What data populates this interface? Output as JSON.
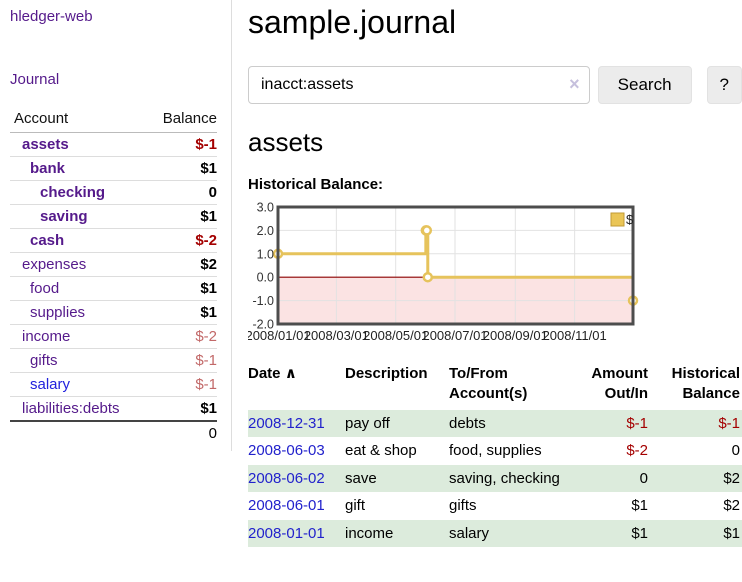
{
  "app": {
    "title": "hledger-web"
  },
  "sidebar": {
    "nav": {
      "journal": "Journal"
    },
    "accounts_table": {
      "headers": {
        "account": "Account",
        "balance": "Balance"
      },
      "rows": [
        {
          "name": "assets",
          "indent": 0,
          "bold": true,
          "balance": "$-1",
          "balance_style": "neg-strong"
        },
        {
          "name": "bank",
          "indent": 1,
          "bold": true,
          "balance": "$1",
          "balance_style": "pos"
        },
        {
          "name": "checking",
          "indent": 2,
          "bold": true,
          "balance": "0",
          "balance_style": "pos"
        },
        {
          "name": "saving",
          "indent": 2,
          "bold": true,
          "balance": "$1",
          "balance_style": "pos"
        },
        {
          "name": "cash",
          "indent": 1,
          "bold": true,
          "balance": "$-2",
          "balance_style": "neg-strong"
        },
        {
          "name": "expenses",
          "indent": 0,
          "bold": false,
          "balance": "$2",
          "balance_style": "pos"
        },
        {
          "name": "food",
          "indent": 1,
          "bold": false,
          "balance": "$1",
          "balance_style": "pos"
        },
        {
          "name": "supplies",
          "indent": 1,
          "bold": false,
          "balance": "$1",
          "balance_style": "pos"
        },
        {
          "name": "income",
          "indent": 0,
          "bold": false,
          "balance": "$-2",
          "balance_style": "neg-soft"
        },
        {
          "name": "gifts",
          "indent": 1,
          "bold": false,
          "balance": "$-1",
          "balance_style": "neg-soft"
        },
        {
          "name": "salary",
          "indent": 1,
          "bold": false,
          "balance": "$-1",
          "balance_style": "neg-soft",
          "link_style": "unvisited"
        },
        {
          "name": "liabilities:debts",
          "indent": 0,
          "bold": false,
          "balance": "$1",
          "balance_style": "pos"
        }
      ],
      "total": "0"
    }
  },
  "main": {
    "title": "sample.journal",
    "search": {
      "value": "inacct:assets",
      "clear_icon": "×",
      "button": "Search",
      "help_button": "?"
    },
    "account_heading": "assets"
  },
  "chart_data": {
    "type": "line",
    "title": "Historical Balance:",
    "step": true,
    "legend": {
      "label": "$",
      "position": "top-right"
    },
    "xlim": [
      "2008-01-01",
      "2008-12-31"
    ],
    "ylim": [
      -2,
      3
    ],
    "grid": true,
    "series": [
      {
        "name": "$",
        "points": [
          {
            "date": "2008-01-01",
            "value": 1
          },
          {
            "date": "2008-06-01",
            "value": 2
          },
          {
            "date": "2008-06-02",
            "value": 2
          },
          {
            "date": "2008-06-03",
            "value": 0
          },
          {
            "date": "2008-12-31",
            "value": -1
          }
        ]
      }
    ],
    "y_ticks": [
      {
        "label": "3.0",
        "value": 3
      },
      {
        "label": "2.0",
        "value": 2
      },
      {
        "label": "1.0",
        "value": 1
      },
      {
        "label": "0.0",
        "value": 0
      },
      {
        "label": "-1.0",
        "value": -1
      },
      {
        "label": "-2.0",
        "value": -2
      }
    ],
    "x_ticks": [
      {
        "label": "2008/01/01",
        "date": "2008-01-01"
      },
      {
        "label": "2008/03/01",
        "date": "2008-03-01"
      },
      {
        "label": "2008/05/01",
        "date": "2008-05-01"
      },
      {
        "label": "2008/07/01",
        "date": "2008-07-01"
      },
      {
        "label": "2008/09/01",
        "date": "2008-09-01"
      },
      {
        "label": "2008/11/01",
        "date": "2008-11-01"
      }
    ],
    "colors": {
      "line": "#e6c35c",
      "marker_fill": "#ffffff",
      "legend_fill": "#eac556",
      "legend_stroke": "#c19a34",
      "negative_fill": "#fbe3e3",
      "zero_line": "#8b0000",
      "plot_border": "#4d4d4d",
      "grid": "#e2e2e2"
    }
  },
  "register_table": {
    "headers": {
      "date": "Date",
      "sort_icon": "∧",
      "description": "Description",
      "accounts": "To/From Account(s)",
      "amount": "Amount Out/In",
      "balance": "Historical Balance"
    },
    "rows": [
      {
        "date": "2008-12-31",
        "description": "pay off",
        "accounts": "debts",
        "amount": "$-1",
        "amount_neg": true,
        "balance": "$-1",
        "balance_neg": true
      },
      {
        "date": "2008-06-03",
        "description": "eat & shop",
        "accounts": "food, supplies",
        "amount": "$-2",
        "amount_neg": true,
        "balance": "0",
        "balance_neg": false
      },
      {
        "date": "2008-06-02",
        "description": "save",
        "accounts": "saving, checking",
        "amount": "0",
        "amount_neg": false,
        "balance": "$2",
        "balance_neg": false
      },
      {
        "date": "2008-06-01",
        "description": "gift",
        "accounts": "gifts",
        "amount": "$1",
        "amount_neg": false,
        "balance": "$2",
        "balance_neg": false
      },
      {
        "date": "2008-01-01",
        "description": "income",
        "accounts": "salary",
        "amount": "$1",
        "amount_neg": false,
        "balance": "$1",
        "balance_neg": false
      }
    ]
  },
  "colors": {
    "accent_purple": "#551a8b",
    "link_blue": "#2222cc",
    "negative_strong": "#a40000",
    "negative_soft": "#c26868",
    "row_stripe_green": "#dcebdc"
  }
}
